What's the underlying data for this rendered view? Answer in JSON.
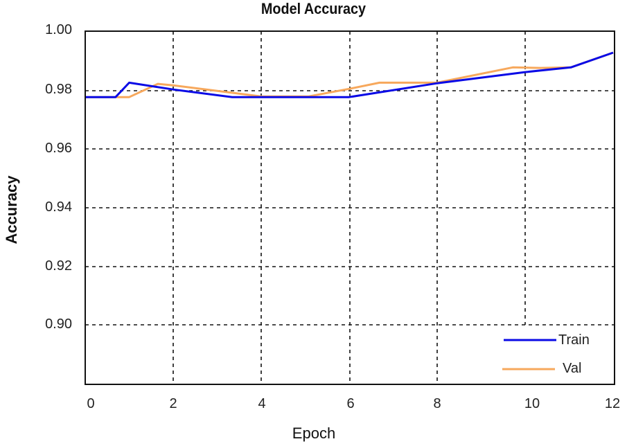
{
  "chart_data": {
    "type": "line",
    "title": "Model Accuracy",
    "xlabel": "Epoch",
    "ylabel": "Accuracy",
    "xlim": [
      0,
      12
    ],
    "ylim": [
      0.88,
      1.0
    ],
    "x_ticks": [
      0,
      2,
      4,
      6,
      8,
      10,
      12
    ],
    "y_ticks": [
      "1.00",
      "0.98",
      "0.96",
      "0.94",
      "0.92",
      "0.90"
    ],
    "grid": true,
    "legend_position": "lower right",
    "series": [
      {
        "name": "Train",
        "color": "#0a0ae6",
        "x": [
          0,
          0.69,
          1.0,
          2,
          3.34,
          4,
          6,
          8,
          10,
          11.04,
          12
        ],
        "values": [
          0.9776,
          0.9776,
          0.9825,
          0.9802,
          0.9776,
          0.9776,
          0.9776,
          0.9823,
          0.9861,
          0.9877,
          0.9927
        ]
      },
      {
        "name": "Val",
        "color": "#f7a85c",
        "x": [
          0,
          1.0,
          1.65,
          2,
          4,
          5.07,
          6,
          6.69,
          8,
          9.72,
          10.35,
          11.04,
          12
        ],
        "values": [
          0.9776,
          0.9776,
          0.9821,
          0.9816,
          0.9778,
          0.9778,
          0.9804,
          0.9825,
          0.9825,
          0.9877,
          0.9875,
          0.9877,
          0.9927
        ]
      }
    ]
  },
  "legend": {
    "train": "Train",
    "val": "Val"
  }
}
